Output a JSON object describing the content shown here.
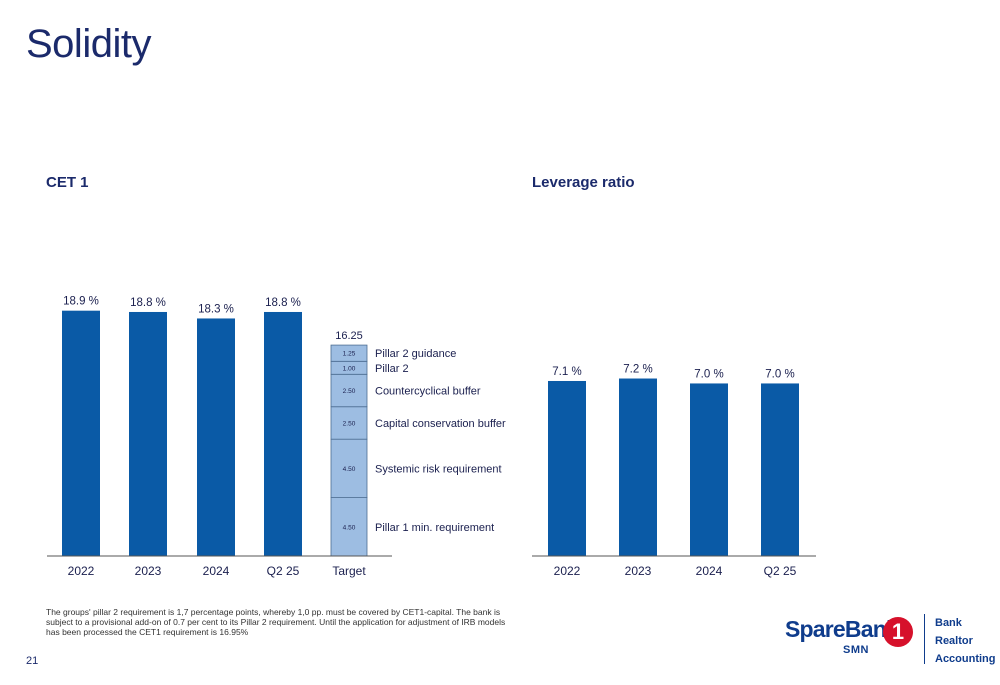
{
  "page": {
    "title": "Solidity",
    "page_number": "21",
    "footnote": "The groups' pillar 2 requirement is 1,7 percentage points, whereby 1,0 pp. must be covered by CET1-capital. The bank is subject to a provisional add-on of 0.7 per cent to its Pillar 2 requirement. Until the application for adjustment of IRB models has been processed the CET1 requirement is 16.95%"
  },
  "logo": {
    "name": "SpareBank",
    "sub": "SMN",
    "mark": "1",
    "units": [
      "Bank",
      "Realtor",
      "Accounting"
    ]
  },
  "colors": {
    "bar": "#0a5aa6",
    "stack": "#9dbde2",
    "stack_border": "#4d6d91",
    "axis": "#555555"
  },
  "chart_data": [
    {
      "type": "bar",
      "title": "CET 1",
      "categories": [
        "2022",
        "2023",
        "2024",
        "Q2 25"
      ],
      "values": [
        18.9,
        18.8,
        18.3,
        18.8
      ],
      "value_labels": [
        "18.9 %",
        "18.8 %",
        "18.3 %",
        "18.8 %"
      ],
      "ylim": [
        0,
        20
      ],
      "target": {
        "category": "Target",
        "total": 16.25,
        "total_label": "16.25",
        "components": [
          {
            "name": "Pillar 1 min. requirement",
            "value": 4.5,
            "label": "4.50"
          },
          {
            "name": "Systemic risk requirement",
            "value": 4.5,
            "label": "4.50"
          },
          {
            "name": "Capital conservation buffer",
            "value": 2.5,
            "label": "2.50"
          },
          {
            "name": "Countercyclical buffer",
            "value": 2.5,
            "label": "2.50"
          },
          {
            "name": "Pillar 2",
            "value": 1.0,
            "label": "1.00"
          },
          {
            "name": "Pillar 2 guidance",
            "value": 1.25,
            "label": "1.25"
          }
        ]
      }
    },
    {
      "type": "bar",
      "title": "Leverage ratio",
      "categories": [
        "2022",
        "2023",
        "2024",
        "Q2 25"
      ],
      "values": [
        7.1,
        7.2,
        7.0,
        7.0
      ],
      "value_labels": [
        "7.1 %",
        "7.2 %",
        "7.0 %",
        "7.0 %"
      ],
      "ylim": [
        0,
        7.85
      ]
    }
  ]
}
